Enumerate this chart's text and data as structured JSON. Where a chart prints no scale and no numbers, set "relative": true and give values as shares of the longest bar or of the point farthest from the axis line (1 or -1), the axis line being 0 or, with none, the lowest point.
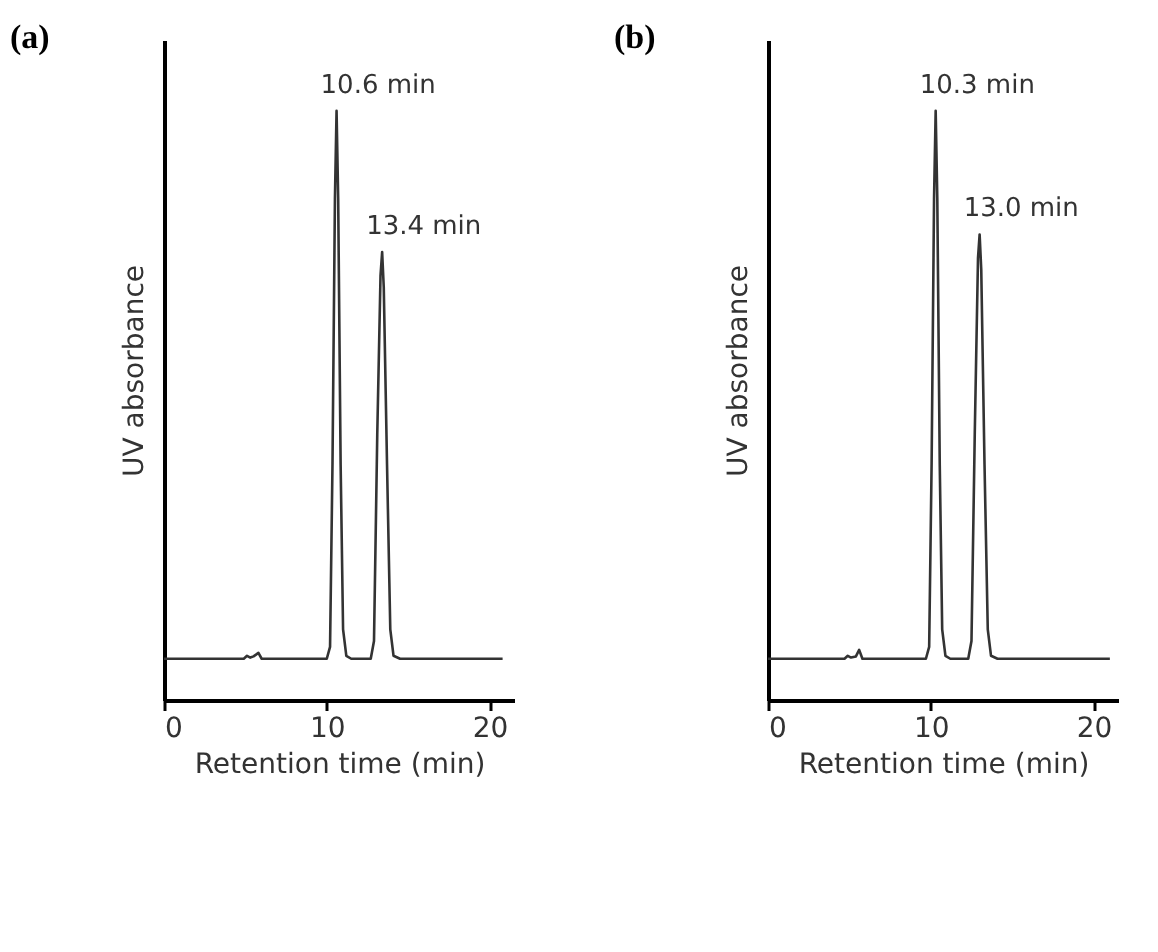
{
  "chart_data": [
    {
      "type": "line",
      "title": "(a)",
      "xlabel": "Retention time (min)",
      "ylabel": "UV absorbance",
      "relative": true,
      "xlim": [
        0,
        21.5
      ],
      "xticks": [
        0,
        10,
        20
      ],
      "grid": false,
      "legend": false,
      "marker": "none",
      "line_style": "solid",
      "x": [
        0,
        4.9,
        5.1,
        5.3,
        5.5,
        5.8,
        6.0,
        6.3,
        10.0,
        10.2,
        10.35,
        10.5,
        10.6,
        10.7,
        10.85,
        11.0,
        11.2,
        11.5,
        12.7,
        12.9,
        13.1,
        13.3,
        13.4,
        13.5,
        13.7,
        13.9,
        14.1,
        14.5,
        20.8
      ],
      "series": [
        {
          "color": "#333333",
          "values": [
            0.07,
            0.07,
            0.075,
            0.072,
            0.074,
            0.08,
            0.07,
            0.07,
            0.07,
            0.09,
            0.4,
            0.85,
            1.0,
            0.85,
            0.4,
            0.12,
            0.075,
            0.07,
            0.07,
            0.1,
            0.45,
            0.72,
            0.76,
            0.7,
            0.4,
            0.12,
            0.075,
            0.07,
            0.07
          ]
        }
      ],
      "annotations": [
        {
          "text": "10.6 min",
          "x": 10.6,
          "y": 1.0
        },
        {
          "text": "13.4 min",
          "x": 13.4,
          "y": 0.76
        }
      ]
    },
    {
      "type": "line",
      "title": "(b)",
      "xlabel": "Retention time (min)",
      "ylabel": "UV absorbance",
      "relative": true,
      "xlim": [
        0,
        21.5
      ],
      "xticks": [
        0,
        10,
        20
      ],
      "grid": false,
      "legend": false,
      "marker": "none",
      "line_style": "solid",
      "x": [
        0,
        4.7,
        4.9,
        5.1,
        5.4,
        5.6,
        5.8,
        6.1,
        9.7,
        9.9,
        10.05,
        10.2,
        10.3,
        10.4,
        10.55,
        10.7,
        10.9,
        11.2,
        12.3,
        12.5,
        12.7,
        12.9,
        13.0,
        13.1,
        13.3,
        13.5,
        13.7,
        14.1,
        21.0
      ],
      "series": [
        {
          "color": "#333333",
          "values": [
            0.07,
            0.07,
            0.075,
            0.072,
            0.074,
            0.085,
            0.07,
            0.07,
            0.07,
            0.09,
            0.4,
            0.85,
            1.0,
            0.85,
            0.4,
            0.12,
            0.075,
            0.07,
            0.07,
            0.1,
            0.45,
            0.75,
            0.79,
            0.73,
            0.4,
            0.12,
            0.075,
            0.07,
            0.07
          ]
        }
      ],
      "annotations": [
        {
          "text": "10.3 min",
          "x": 10.3,
          "y": 1.0
        },
        {
          "text": "13.0 min",
          "x": 13.0,
          "y": 0.79
        }
      ]
    }
  ]
}
